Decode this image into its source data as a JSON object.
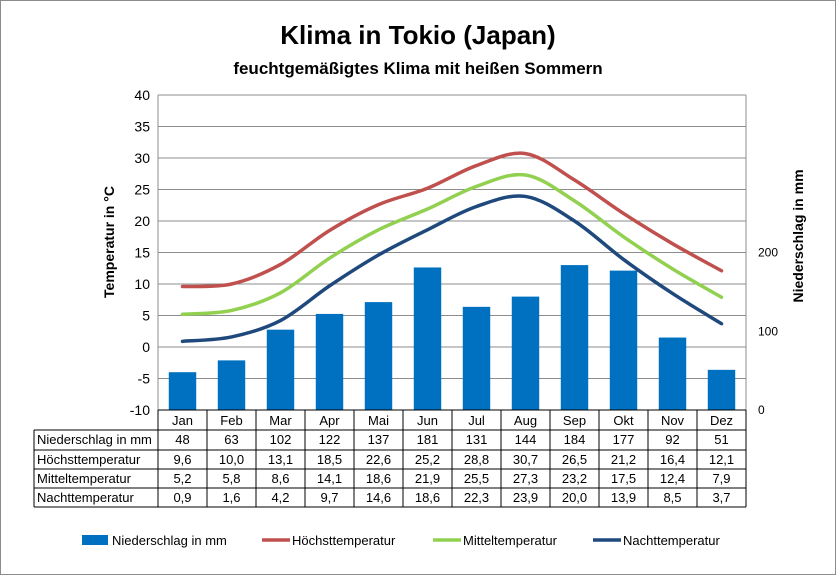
{
  "chart_data": {
    "type": "bar",
    "title": "Klima in Tokio (Japan)",
    "subtitle": "feuchtgemäßigtes Klima mit heißen Sommern",
    "ylabel": "Temperatur in °C",
    "y2label": "Niederschlag in mm",
    "ylim": [
      -10,
      40
    ],
    "yticks": [
      -10,
      -5,
      0,
      5,
      10,
      15,
      20,
      25,
      30,
      35,
      40
    ],
    "y2lim": [
      0,
      400
    ],
    "y2ticks": [
      0,
      100,
      200
    ],
    "grid": true,
    "legend_position": "bottom",
    "categories": [
      "Jan",
      "Feb",
      "Mar",
      "Apr",
      "Mai",
      "Jun",
      "Jul",
      "Aug",
      "Sep",
      "Okt",
      "Nov",
      "Dez"
    ],
    "series": [
      {
        "name": "Niederschlag in mm",
        "type": "bar",
        "axis": "right",
        "color": "#0070c0",
        "values": [
          "48",
          "63",
          "102",
          "122",
          "137",
          "181",
          "131",
          "144",
          "184",
          "177",
          "92",
          "51"
        ]
      },
      {
        "name": "Höchsttemperatur",
        "type": "line",
        "axis": "left",
        "color": "#c0504d",
        "values": [
          "9,6",
          "10,0",
          "13,1",
          "18,5",
          "22,6",
          "25,2",
          "28,8",
          "30,7",
          "26,5",
          "21,2",
          "16,4",
          "12,1"
        ]
      },
      {
        "name": "Mitteltemperatur",
        "type": "line",
        "axis": "left",
        "color": "#92d050",
        "values": [
          "5,2",
          "5,8",
          "8,6",
          "14,1",
          "18,6",
          "21,9",
          "25,5",
          "27,3",
          "23,2",
          "17,5",
          "12,4",
          "7,9"
        ]
      },
      {
        "name": "Nachttemperatur",
        "type": "line",
        "axis": "left",
        "color": "#1f497d",
        "values": [
          "0,9",
          "1,6",
          "4,2",
          "9,7",
          "14,6",
          "18,6",
          "22,3",
          "23,9",
          "20,0",
          "13,9",
          "8,5",
          "3,7"
        ]
      }
    ]
  }
}
